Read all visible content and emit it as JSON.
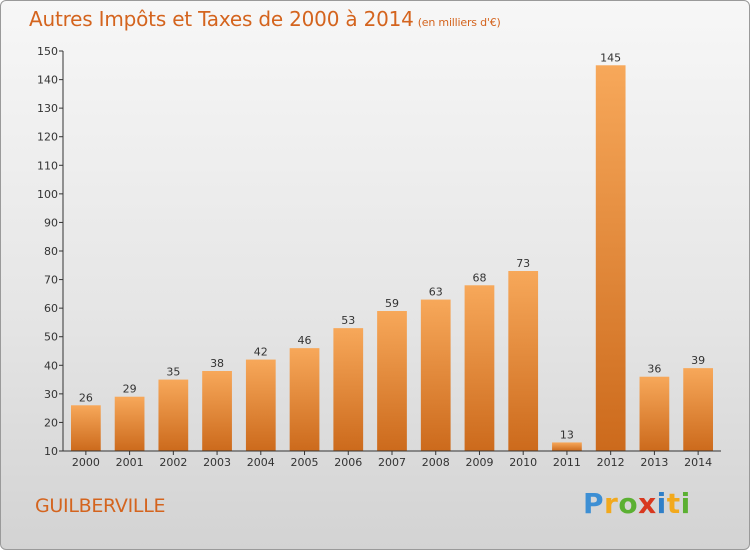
{
  "header": {
    "title": "Autres Impôts et Taxes de 2000 à 2014",
    "subtitle": "(en milliers d'€)"
  },
  "commune": "GUILBERVILLE",
  "logo_letters": [
    "P",
    "r",
    "o",
    "x",
    "i",
    "t",
    "i"
  ],
  "colors": {
    "title": "#d4641e",
    "bar_light": "#f7a85a",
    "bar_dark": "#cc6a1c"
  },
  "chart_data": {
    "type": "bar",
    "title": "Autres Impôts et Taxes de 2000 à 2014",
    "subtitle": "(en milliers d'€)",
    "categories": [
      "2000",
      "2001",
      "2002",
      "2003",
      "2004",
      "2005",
      "2006",
      "2007",
      "2008",
      "2009",
      "2010",
      "2011",
      "2012",
      "2013",
      "2014"
    ],
    "values": [
      26,
      29,
      35,
      38,
      42,
      46,
      53,
      59,
      63,
      68,
      73,
      13,
      145,
      36,
      39
    ],
    "ylim": [
      10,
      150
    ],
    "yticks": [
      10,
      20,
      30,
      40,
      50,
      60,
      70,
      80,
      90,
      100,
      110,
      120,
      130,
      140,
      150
    ],
    "xlabel": "",
    "ylabel": "",
    "grid": false,
    "data_labels": true
  }
}
